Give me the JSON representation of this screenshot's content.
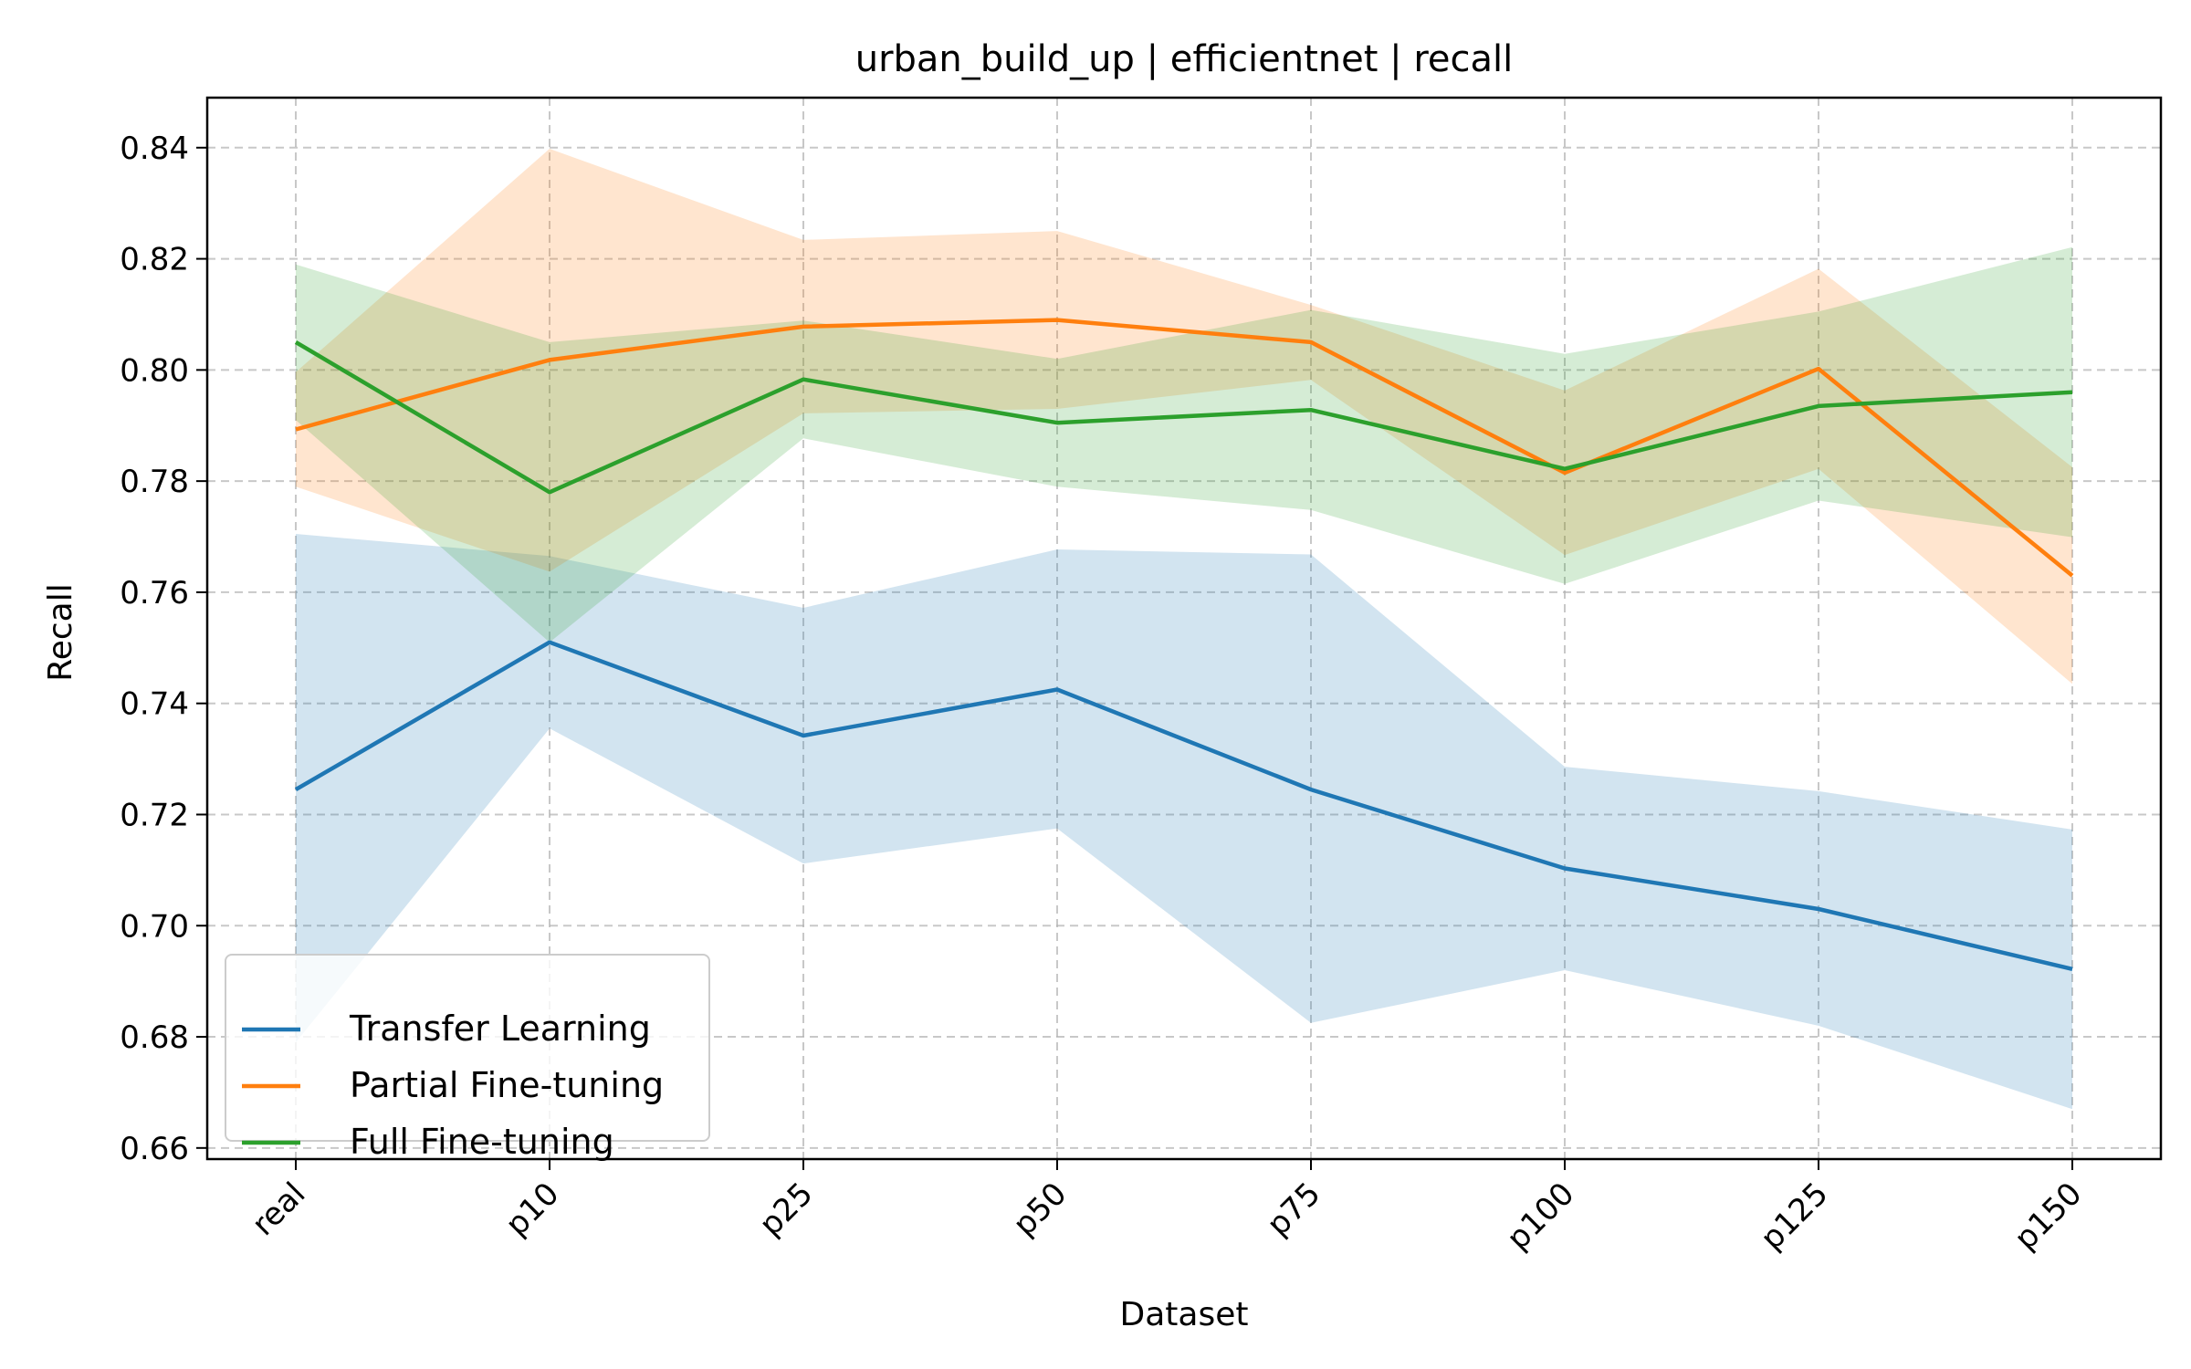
{
  "chart_data": {
    "type": "line",
    "title": "urban_build_up | efficientnet | recall",
    "xlabel": "Dataset",
    "ylabel": "Recall",
    "categories": [
      "real",
      "p10",
      "p25",
      "p50",
      "p75",
      "p100",
      "p125",
      "p150"
    ],
    "ylim": [
      0.658,
      0.849
    ],
    "yticks": [
      0.66,
      0.68,
      0.7,
      0.72,
      0.74,
      0.76,
      0.78,
      0.8,
      0.82,
      0.84
    ],
    "ytick_labels": [
      "0.66",
      "0.68",
      "0.70",
      "0.72",
      "0.74",
      "0.76",
      "0.78",
      "0.80",
      "0.82",
      "0.84"
    ],
    "grid": true,
    "legend_position": "lower-left",
    "series": [
      {
        "name": "Transfer Learning",
        "color": "#1f77b4",
        "values": [
          0.7245,
          0.751,
          0.7342,
          0.7425,
          0.7245,
          0.7103,
          0.703,
          0.6922
        ],
        "lower": [
          0.679,
          0.7355,
          0.7112,
          0.7175,
          0.6825,
          0.692,
          0.682,
          0.667
        ],
        "upper": [
          0.7705,
          0.7665,
          0.7572,
          0.7677,
          0.7668,
          0.7286,
          0.7242,
          0.7173
        ]
      },
      {
        "name": "Partial Fine-tuning",
        "color": "#ff7f0e",
        "values": [
          0.7893,
          0.8018,
          0.8078,
          0.809,
          0.805,
          0.7815,
          0.8002,
          0.763
        ],
        "lower": [
          0.779,
          0.7637,
          0.7922,
          0.793,
          0.7982,
          0.7667,
          0.7822,
          0.7435
        ],
        "upper": [
          0.7996,
          0.8398,
          0.8234,
          0.825,
          0.8117,
          0.7963,
          0.8182,
          0.7825
        ]
      },
      {
        "name": "Full Fine-tuning",
        "color": "#2ca02c",
        "values": [
          0.805,
          0.778,
          0.7983,
          0.7905,
          0.7928,
          0.7822,
          0.7935,
          0.796
        ],
        "lower": [
          0.791,
          0.751,
          0.7877,
          0.779,
          0.7748,
          0.7615,
          0.7765,
          0.7699
        ],
        "upper": [
          0.819,
          0.805,
          0.8089,
          0.802,
          0.8108,
          0.8029,
          0.8105,
          0.8221
        ]
      }
    ]
  }
}
